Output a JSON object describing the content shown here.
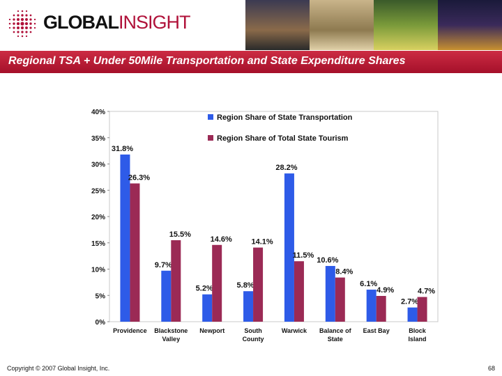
{
  "header": {
    "logo_text_1": "GLOBAL",
    "logo_text_2": "INSIGHT",
    "title": "Regional TSA + Under 50Mile Transportation and State Expenditure Shares"
  },
  "footer": {
    "copyright": "Copyright © 2007 Global Insight, Inc.",
    "page_number": "68"
  },
  "colors": {
    "brand_red": "#b0123a",
    "series_transport": "#2e5be8",
    "series_tourism": "#9b2a55"
  },
  "chart_data": {
    "type": "bar",
    "categories": [
      [
        "Providence"
      ],
      [
        "Blackstone",
        "Valley"
      ],
      [
        "Newport"
      ],
      [
        "South",
        "County"
      ],
      [
        "Warwick"
      ],
      [
        "Balance of",
        "State"
      ],
      [
        "East Bay"
      ],
      [
        "Block",
        "Island"
      ]
    ],
    "series": [
      {
        "name": "Region Share of State Transportation",
        "values": [
          31.8,
          9.7,
          5.2,
          5.8,
          28.2,
          10.6,
          6.1,
          2.7
        ],
        "labels": [
          "31.8%",
          "9.7%",
          "5.2%",
          "5.8%",
          "28.2%",
          "10.6%",
          "6.1%",
          "2.7%"
        ],
        "color": "#2e5be8"
      },
      {
        "name": "Region Share of Total State Tourism",
        "values": [
          26.3,
          15.5,
          14.6,
          14.1,
          11.5,
          8.4,
          4.9,
          4.7
        ],
        "labels": [
          "26.3%",
          "15.5%",
          "14.6%",
          "14.1%",
          "11.5%",
          "8.4%",
          "4.9%",
          "4.7%"
        ],
        "color": "#9b2a55"
      }
    ],
    "yticks": [
      "0%",
      "5%",
      "10%",
      "15%",
      "20%",
      "25%",
      "30%",
      "35%",
      "40%"
    ],
    "ylim": [
      0,
      40
    ],
    "legend": "top-center",
    "grid": false
  }
}
